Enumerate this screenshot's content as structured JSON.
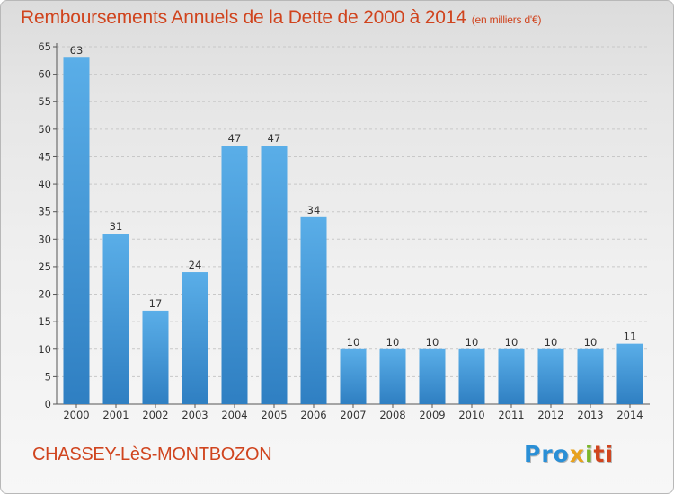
{
  "header": {
    "title": "Remboursements Annuels de la Dette de 2000 à 2014",
    "subtitle": "(en milliers d'€)"
  },
  "footer": {
    "commune": "CHASSEY-LèS-MONTBOZON",
    "logo_parts": [
      "Pro",
      "x",
      "i",
      "ti"
    ]
  },
  "colors": {
    "title": "#d0441e",
    "bar": "#3d97dc",
    "bar_dark": "#2f7fc2",
    "grid": "#c8c8c8"
  },
  "chart_data": {
    "type": "bar",
    "title": "Remboursements Annuels de la Dette de 2000 à 2014",
    "subtitle": "(en milliers d'€)",
    "xlabel": "",
    "ylabel": "",
    "categories": [
      "2000",
      "2001",
      "2002",
      "2003",
      "2004",
      "2005",
      "2006",
      "2007",
      "2008",
      "2009",
      "2010",
      "2011",
      "2012",
      "2013",
      "2014"
    ],
    "values": [
      63,
      31,
      17,
      24,
      47,
      47,
      34,
      10,
      10,
      10,
      10,
      10,
      10,
      10,
      11
    ],
    "ylim": [
      0,
      65
    ],
    "yticks": [
      0,
      5,
      10,
      15,
      20,
      25,
      30,
      35,
      40,
      45,
      50,
      55,
      60,
      65
    ],
    "grid": "horizontal dashed",
    "legend": "none"
  }
}
